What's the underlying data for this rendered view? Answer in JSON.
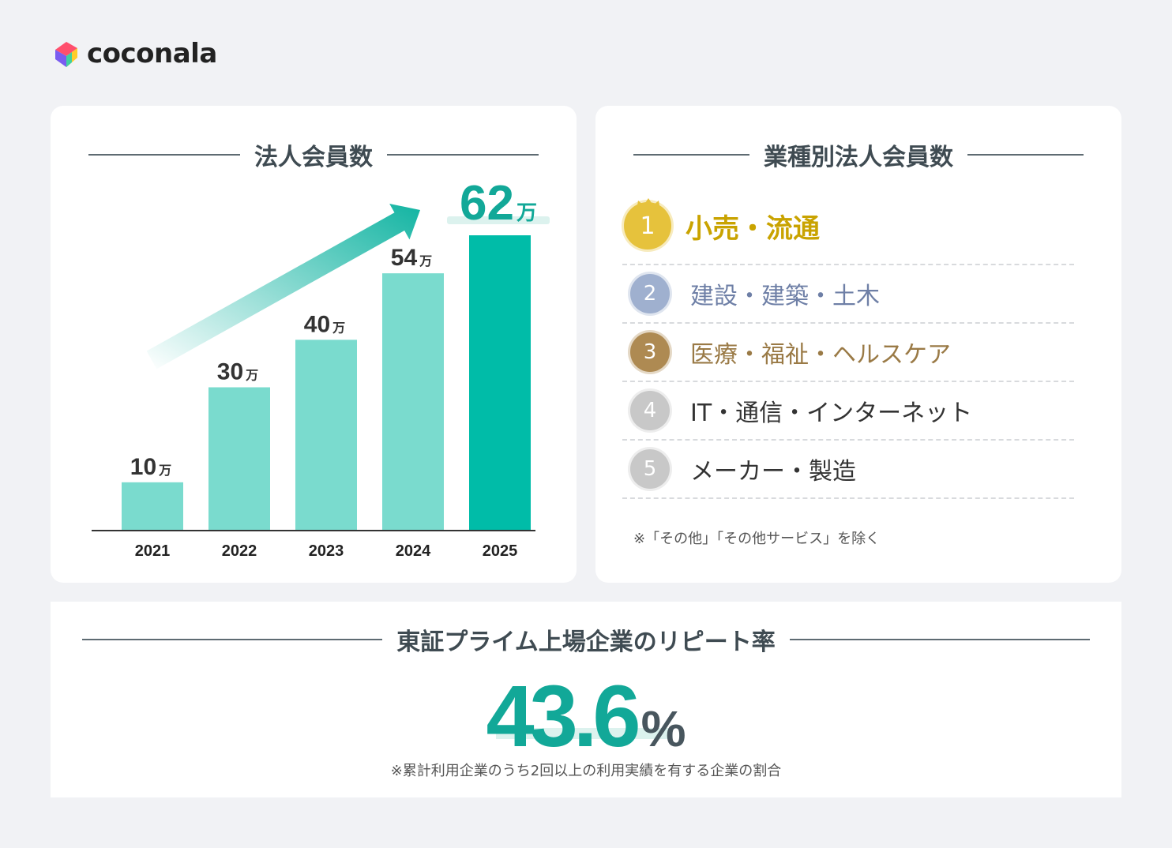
{
  "brand": {
    "name": "coconala"
  },
  "members_card": {
    "title": "法人会員数"
  },
  "chart_data": {
    "type": "bar",
    "title": "法人会員数",
    "categories": [
      "2021",
      "2022",
      "2023",
      "2024",
      "2025"
    ],
    "values": [
      10,
      30,
      40,
      54,
      62
    ],
    "value_unit": "万",
    "value_labels": [
      "10",
      "30",
      "40",
      "54",
      "62"
    ],
    "ylim": [
      0,
      62
    ],
    "xlabel": "",
    "ylabel": "",
    "grid": false,
    "colors": {
      "regular": "#7adbce",
      "highlight": "#00bca8",
      "arrow": "#12b4a2",
      "highlight_label": "#12a898"
    }
  },
  "industry_card": {
    "title": "業種別法人会員数",
    "ranks": [
      {
        "number": "1",
        "label": "小売・流通",
        "color": "#c9a300",
        "medal": "#e6c23c"
      },
      {
        "number": "2",
        "label": "建設・建築・土木",
        "color": "#6e7fa6",
        "medal": "#9fb0cf"
      },
      {
        "number": "3",
        "label": "医療・福祉・ヘルスケア",
        "color": "#9a7a46",
        "medal": "#ae8a52"
      },
      {
        "number": "4",
        "label": "IT・通信・インターネット",
        "color": "#333333",
        "medal": "#c8c8c8"
      },
      {
        "number": "5",
        "label": "メーカー・製造",
        "color": "#333333",
        "medal": "#c8c8c8"
      }
    ],
    "note": "※「その他」「その他サービス」を除く"
  },
  "repeat_card": {
    "title": "東証プライム上場企業のリピート率",
    "value": "43.6",
    "unit": "%",
    "note": "※累計利用企業のうち2回以上の利用実績を有する企業の割合"
  }
}
